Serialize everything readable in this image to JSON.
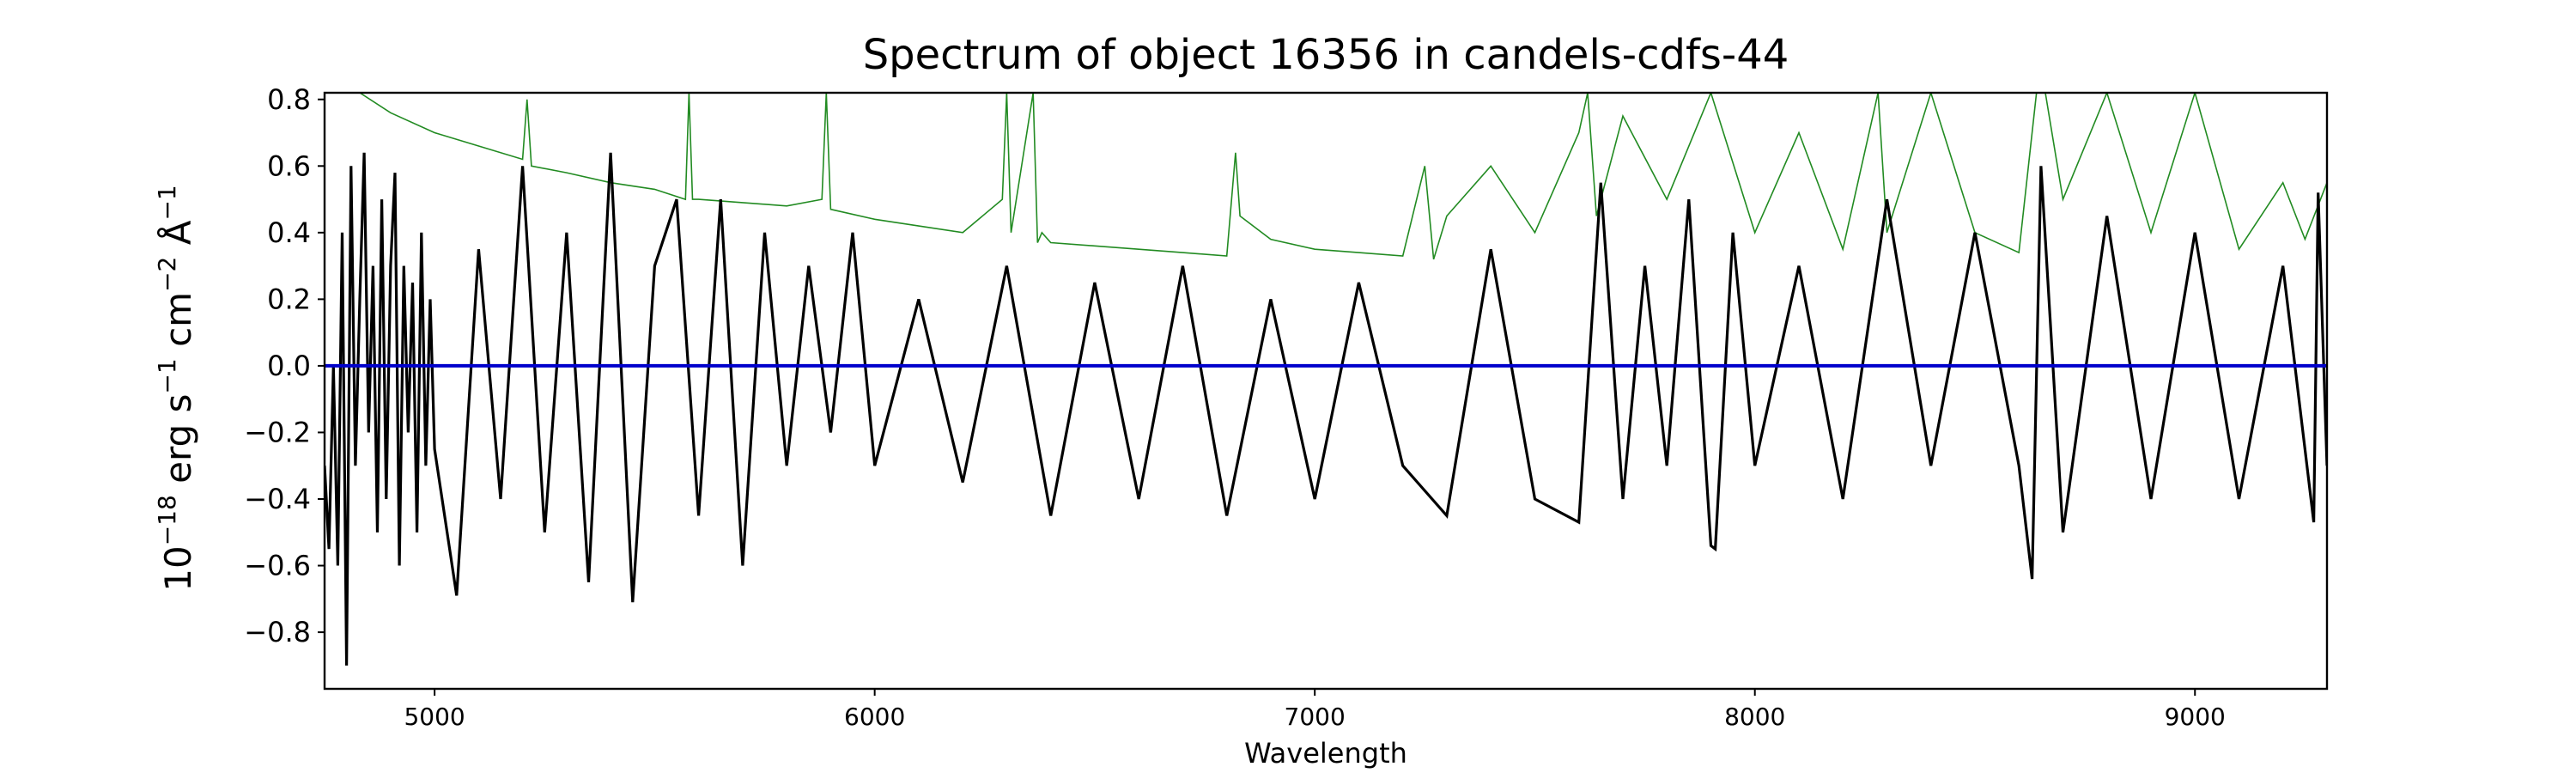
{
  "chart_data": {
    "type": "line",
    "title": "Spectrum of object 16356 in candels-cdfs-44",
    "xlabel": "Wavelength",
    "ylabel": {
      "prefix": "10",
      "exp1": "−18",
      "unit1": " erg s",
      "exp2": "−1",
      "unit2": " cm",
      "exp3": "−2",
      "unit3": " Å",
      "exp4": "−1"
    },
    "xlim": [
      4750,
      9300
    ],
    "ylim": [
      -0.97,
      0.82
    ],
    "x_ticks": [
      5000,
      6000,
      7000,
      8000,
      9000
    ],
    "y_ticks": [
      -0.8,
      -0.6,
      -0.4,
      -0.2,
      0.0,
      0.2,
      0.4,
      0.6,
      0.8
    ],
    "x_tick_labels": [
      "5000",
      "6000",
      "7000",
      "8000",
      "9000"
    ],
    "y_tick_labels": [
      "−0.8",
      "−0.6",
      "−0.4",
      "−0.2",
      "0.0",
      "0.2",
      "0.4",
      "0.6",
      "0.8"
    ],
    "grid": false,
    "colors": {
      "flux": "#000000",
      "model": "#0000cc",
      "sky": "#228b22"
    },
    "series": [
      {
        "key": "flux",
        "x": [
          4750,
          4760,
          4770,
          4780,
          4790,
          4800,
          4810,
          4820,
          4830,
          4840,
          4850,
          4860,
          4870,
          4880,
          4890,
          4900,
          4910,
          4920,
          4930,
          4940,
          4950,
          4960,
          4970,
          4980,
          4990,
          5000,
          5050,
          5100,
          5150,
          5200,
          5250,
          5300,
          5350,
          5400,
          5450,
          5500,
          5550,
          5600,
          5650,
          5700,
          5750,
          5800,
          5850,
          5900,
          5950,
          6000,
          6100,
          6200,
          6300,
          6400,
          6500,
          6600,
          6700,
          6800,
          6900,
          7000,
          7100,
          7200,
          7300,
          7400,
          7500,
          7600,
          7650,
          7700,
          7750,
          7800,
          7850,
          7900,
          7910,
          7950,
          8000,
          8100,
          8200,
          8300,
          8400,
          8500,
          8600,
          8630,
          8650,
          8700,
          8800,
          8900,
          9000,
          9100,
          9200,
          9270,
          9280,
          9300
        ],
        "y": [
          -0.3,
          -0.55,
          0.0,
          -0.6,
          0.4,
          -0.9,
          0.6,
          -0.3,
          0.2,
          0.64,
          -0.2,
          0.3,
          -0.5,
          0.5,
          -0.4,
          0.3,
          0.58,
          -0.6,
          0.3,
          -0.2,
          0.25,
          -0.5,
          0.4,
          -0.3,
          0.2,
          -0.25,
          -0.69,
          0.35,
          -0.4,
          0.6,
          -0.5,
          0.4,
          -0.65,
          0.64,
          -0.71,
          0.3,
          0.5,
          -0.45,
          0.5,
          -0.6,
          0.4,
          -0.3,
          0.3,
          -0.2,
          0.4,
          -0.3,
          0.2,
          -0.35,
          0.3,
          -0.45,
          0.25,
          -0.4,
          0.3,
          -0.45,
          0.2,
          -0.4,
          0.25,
          -0.3,
          -0.45,
          0.35,
          -0.4,
          -0.47,
          0.55,
          -0.4,
          0.3,
          -0.3,
          0.5,
          -0.54,
          -0.55,
          0.4,
          -0.3,
          0.3,
          -0.4,
          0.5,
          -0.3,
          0.4,
          -0.3,
          -0.64,
          0.6,
          -0.5,
          0.45,
          -0.4,
          0.4,
          -0.4,
          0.3,
          -0.47,
          0.52,
          -0.3
        ]
      },
      {
        "key": "model",
        "x": [
          4750,
          9300
        ],
        "y": [
          0.0,
          0.0
        ]
      },
      {
        "key": "sky",
        "x": [
          4830,
          4900,
          5000,
          5100,
          5200,
          5210,
          5220,
          5300,
          5400,
          5500,
          5570,
          5578,
          5586,
          5600,
          5700,
          5800,
          5880,
          5890,
          5900,
          6000,
          6100,
          6200,
          6290,
          6300,
          6310,
          6360,
          6370,
          6380,
          6400,
          6500,
          6600,
          6700,
          6800,
          6820,
          6830,
          6900,
          7000,
          7100,
          7200,
          7250,
          7270,
          7300,
          7400,
          7500,
          7600,
          7620,
          7640,
          7700,
          7800,
          7900,
          8000,
          8100,
          8200,
          8280,
          8300,
          8400,
          8500,
          8600,
          8640,
          8660,
          8700,
          8800,
          8900,
          9000,
          9100,
          9200,
          9250,
          9300
        ],
        "y": [
          0.82,
          0.76,
          0.7,
          0.66,
          0.62,
          0.8,
          0.6,
          0.58,
          0.55,
          0.53,
          0.5,
          0.82,
          0.5,
          0.5,
          0.49,
          0.48,
          0.5,
          0.82,
          0.47,
          0.44,
          0.42,
          0.4,
          0.5,
          0.82,
          0.4,
          0.82,
          0.37,
          0.4,
          0.37,
          0.36,
          0.35,
          0.34,
          0.33,
          0.64,
          0.45,
          0.38,
          0.35,
          0.34,
          0.33,
          0.6,
          0.32,
          0.45,
          0.6,
          0.4,
          0.7,
          0.82,
          0.45,
          0.75,
          0.5,
          0.82,
          0.4,
          0.7,
          0.35,
          0.82,
          0.4,
          0.82,
          0.4,
          0.34,
          0.82,
          0.82,
          0.5,
          0.82,
          0.4,
          0.82,
          0.35,
          0.55,
          0.38,
          0.55
        ]
      }
    ]
  }
}
